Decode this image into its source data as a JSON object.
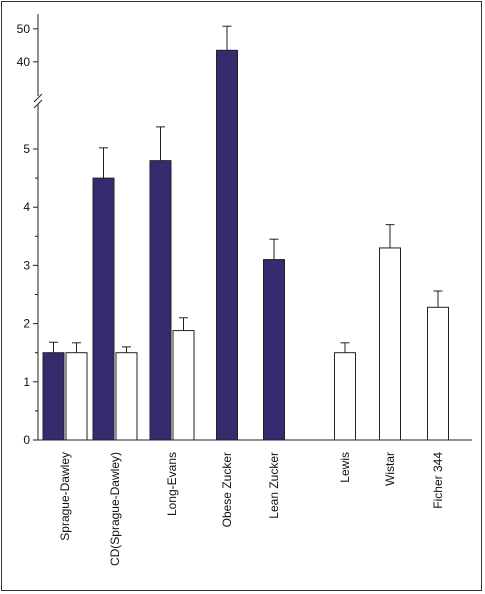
{
  "chart_data": {
    "type": "bar",
    "categories": [
      "Sprague-Dawley",
      "CD(Sprague-Dawley)",
      "Long-Evans",
      "Obese Zucker",
      "Lean Zucker",
      "Lewis",
      "Wistar",
      "Ficher 344"
    ],
    "series": [
      {
        "color": "#372a6e",
        "values": [
          1.5,
          4.5,
          4.8,
          43.5,
          3.1,
          null,
          null,
          null
        ],
        "errors": [
          0.18,
          0.52,
          0.58,
          7.3,
          0.35,
          null,
          null,
          null
        ]
      },
      {
        "color": "#ffffff",
        "values": [
          1.5,
          1.5,
          1.88,
          null,
          null,
          1.5,
          3.3,
          2.28
        ],
        "errors": [
          0.17,
          0.1,
          0.22,
          null,
          null,
          0.17,
          0.4,
          0.28
        ]
      }
    ],
    "y_ticks_lower": [
      "0",
      "1",
      "2",
      "3",
      "4",
      "5"
    ],
    "y_ticks_upper": [
      "40",
      "50"
    ],
    "ylim_lower": [
      0,
      5.5
    ],
    "ylim_upper": [
      39.5,
      51
    ],
    "axis_break": true,
    "legend": "none",
    "grid": false
  }
}
